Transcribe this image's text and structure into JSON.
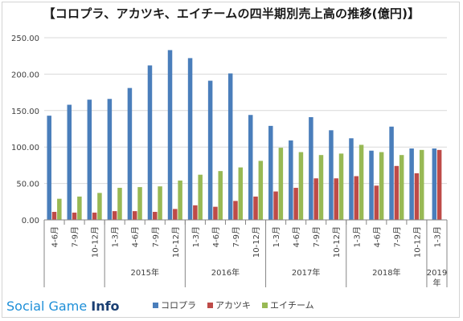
{
  "brand": {
    "text": "Social Game ",
    "info": "Info"
  },
  "chart_data": {
    "type": "bar",
    "title": "【コロプラ、アカツキ、エイチームの四半期別売上高の推移(億円)】",
    "ylim": [
      0,
      250
    ],
    "yticks": [
      "0.00",
      "50.00",
      "100.00",
      "150.00",
      "200.00",
      "250.00"
    ],
    "grid": true,
    "legend_position": "bottom",
    "categories": [
      "4-6月",
      "7-9月",
      "10-12月",
      "1-3月",
      "4-6月",
      "7-9月",
      "10-12月",
      "1-3月",
      "4-6月",
      "7-9月",
      "10-12月",
      "1-3月",
      "4-6月",
      "7-9月",
      "10-12月",
      "1-3月",
      "4-6月",
      "7-9月",
      "10-12月",
      "1-3月"
    ],
    "year_groups": [
      {
        "label": "",
        "count": 3
      },
      {
        "label": "2015年",
        "count": 4
      },
      {
        "label": "2016年",
        "count": 4
      },
      {
        "label": "2017年",
        "count": 4
      },
      {
        "label": "2018年",
        "count": 4
      },
      {
        "label": "2019\n年",
        "count": 1
      }
    ],
    "series": [
      {
        "name": "コロプラ",
        "color": "#4a7ebb",
        "values": [
          143,
          158,
          165,
          166,
          181,
          212,
          233,
          222,
          191,
          201,
          144,
          129,
          109,
          141,
          123,
          112,
          95,
          128,
          98,
          98
        ]
      },
      {
        "name": "アカツキ",
        "color": "#be4b48",
        "values": [
          11,
          10,
          10,
          12,
          12,
          11,
          15,
          20,
          18,
          26,
          32,
          39,
          44,
          57,
          57,
          60,
          47,
          74,
          64,
          96
        ]
      },
      {
        "name": "エイチーム",
        "color": "#98b954",
        "values": [
          29,
          32,
          37,
          44,
          45,
          46,
          54,
          62,
          67,
          72,
          81,
          99,
          93,
          89,
          91,
          103,
          93,
          89,
          96,
          null
        ]
      }
    ]
  }
}
